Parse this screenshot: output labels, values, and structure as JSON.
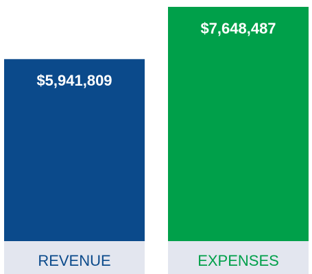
{
  "chart_data": {
    "type": "bar",
    "categories": [
      "REVENUE",
      "EXPENSES"
    ],
    "values": [
      5941809,
      7648487
    ],
    "value_labels": [
      "$5,941,809",
      "$7,648,487"
    ],
    "colors": [
      "#0b4a8b",
      "#00a04a"
    ]
  }
}
